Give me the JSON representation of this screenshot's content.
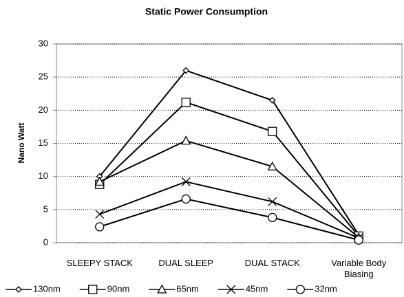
{
  "chart_data": {
    "type": "line",
    "title": "Static Power Consumption",
    "y_label": "Nano Watt",
    "categories": [
      "SLEEPY STACK",
      "DUAL SLEEP",
      "DUAL STACK",
      "Variable Body Biasing"
    ],
    "series": [
      {
        "name": "130nm",
        "color": "#000000",
        "marker": "diamond",
        "values": [
          10.0,
          26.0,
          21.5,
          1.2
        ]
      },
      {
        "name": "90nm",
        "color": "#000000",
        "marker": "square",
        "values": [
          8.8,
          21.2,
          16.8,
          1.0
        ]
      },
      {
        "name": "65nm",
        "color": "#000000",
        "marker": "triangle",
        "values": [
          9.2,
          15.4,
          11.5,
          0.8
        ]
      },
      {
        "name": "45nm",
        "color": "#000000",
        "marker": "x",
        "values": [
          4.3,
          9.2,
          6.2,
          0.7
        ]
      },
      {
        "name": "32nm",
        "color": "#000000",
        "marker": "circle",
        "values": [
          2.4,
          6.6,
          3.8,
          0.4
        ]
      }
    ],
    "ylim": [
      0,
      30
    ],
    "yticks": [
      0,
      5,
      10,
      15,
      20,
      25,
      30
    ],
    "grid": true,
    "legend": "bottom"
  }
}
